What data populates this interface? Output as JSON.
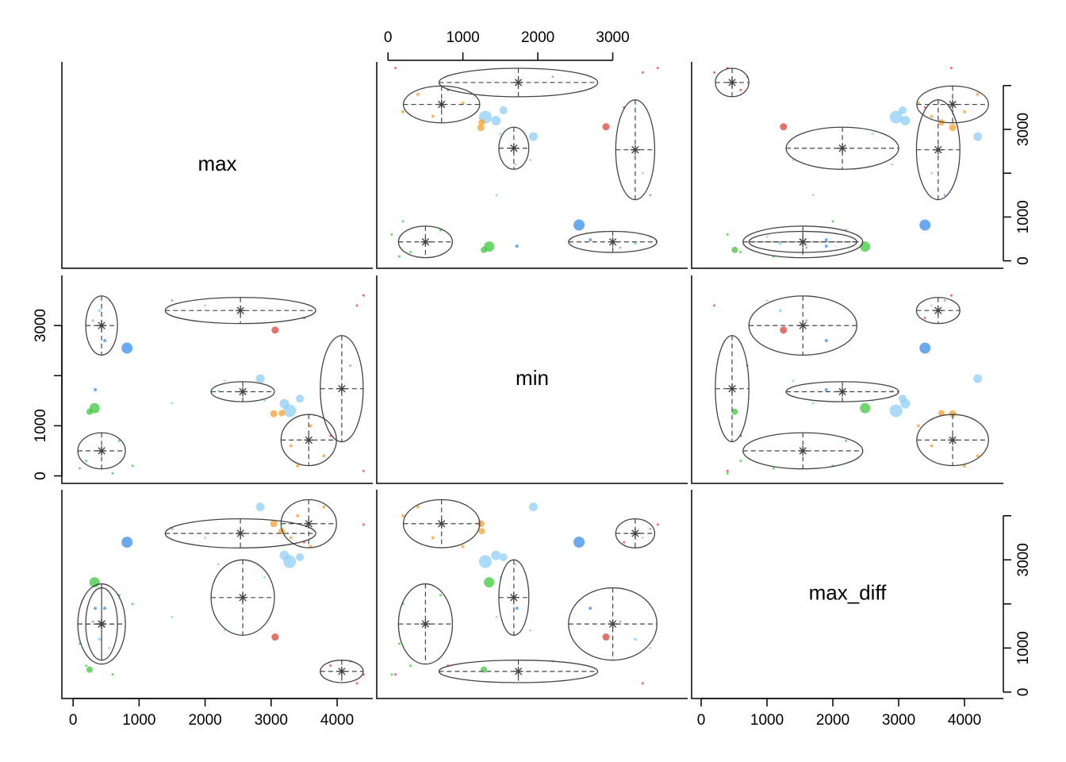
{
  "chart_data": {
    "type": "scatter_matrix",
    "variables": [
      {
        "name": "max",
        "lim": [
          -170,
          4540
        ],
        "ticks": [
          0,
          1000,
          2000,
          3000,
          4000
        ],
        "side_ticks": [
          0,
          1000,
          3000
        ]
      },
      {
        "name": "min",
        "lim": [
          -150,
          4000
        ],
        "ticks": [
          0,
          1000,
          2000,
          3000
        ],
        "side_ticks": [
          0,
          1000,
          3000
        ]
      },
      {
        "name": "max_diff",
        "lim": [
          -145,
          4590
        ],
        "ticks": [
          0,
          1000,
          2000,
          3000,
          4000
        ],
        "side_ticks": [
          0,
          1000,
          3000
        ]
      }
    ],
    "points": [
      {
        "values": [
          817,
          2550,
          3400
        ],
        "color": "#3a8de8",
        "size": 7
      },
      {
        "values": [
          3060,
          2910,
          1250
        ],
        "color": "#e0403a",
        "size": 4.5
      },
      {
        "values": [
          325,
          1350,
          2490
        ],
        "color": "#3fc83f",
        "size": 6.5
      },
      {
        "values": [
          250,
          1280,
          510
        ],
        "color": "#3fc83f",
        "size": 4
      },
      {
        "values": [
          3280,
          1300,
          2960
        ],
        "color": "#8fcff5",
        "size": 8
      },
      {
        "values": [
          2835,
          1940,
          4200
        ],
        "color": "#8fcff5",
        "size": 5.5
      },
      {
        "values": [
          3435,
          1540,
          3060
        ],
        "color": "#8fcff5",
        "size": 5
      },
      {
        "values": [
          3200,
          1440,
          3100
        ],
        "color": "#8fcff5",
        "size": 6
      },
      {
        "values": [
          3040,
          1240,
          3820
        ],
        "color": "#f5a030",
        "size": 4.5
      },
      {
        "values": [
          3160,
          1250,
          3650
        ],
        "color": "#f5a030",
        "size": 4
      },
      {
        "values": [
          336,
          1720,
          1900
        ],
        "color": "#3a8de8",
        "size": 2
      },
      {
        "values": [
          400,
          3300,
          1200
        ],
        "color": "#8fcff5",
        "size": 2
      },
      {
        "values": [
          480,
          2700,
          1900
        ],
        "color": "#3a8de8",
        "size": 2
      },
      {
        "values": [
          300,
          3100,
          1600
        ],
        "color": "#9a8fd8",
        "size": 1.5
      },
      {
        "values": [
          550,
          3500,
          1000
        ],
        "color": "#8fcff5",
        "size": 1.5
      },
      {
        "values": [
          1500,
          3500,
          3700
        ],
        "color": "#9a8fd8",
        "size": 1.5
      },
      {
        "values": [
          3500,
          3150,
          3400
        ],
        "color": "#e0403a",
        "size": 1.5
      },
      {
        "values": [
          2000,
          3400,
          3500
        ],
        "color": "#8fcff5",
        "size": 1.5
      },
      {
        "values": [
          4400,
          3600,
          3800
        ],
        "color": "#e0403a",
        "size": 1.5
      },
      {
        "values": [
          2300,
          1900,
          1400
        ],
        "color": "#8fcff5",
        "size": 1.5
      },
      {
        "values": [
          2900,
          1500,
          2600
        ],
        "color": "#8fcff5",
        "size": 1.5
      },
      {
        "values": [
          2200,
          1700,
          2900
        ],
        "color": "#8fcff5",
        "size": 1.5
      },
      {
        "values": [
          1500,
          1450,
          1700
        ],
        "color": "#8fcff5",
        "size": 1.5
      },
      {
        "values": [
          4300,
          3400,
          200
        ],
        "color": "#e0403a",
        "size": 1.5
      },
      {
        "values": [
          3900,
          800,
          600
        ],
        "color": "#e0403a",
        "size": 1.5
      },
      {
        "values": [
          4200,
          2200,
          700
        ],
        "color": "#9a8fd8",
        "size": 1.5
      },
      {
        "values": [
          4400,
          100,
          400
        ],
        "color": "#e0403a",
        "size": 1.5
      },
      {
        "values": [
          3300,
          600,
          3500
        ],
        "color": "#f5a030",
        "size": 2
      },
      {
        "values": [
          3800,
          400,
          4200
        ],
        "color": "#f5a030",
        "size": 2
      },
      {
        "values": [
          3600,
          1000,
          3300
        ],
        "color": "#f5a030",
        "size": 2
      },
      {
        "values": [
          3400,
          200,
          4000
        ],
        "color": "#f5a030",
        "size": 2
      },
      {
        "values": [
          200,
          300,
          600
        ],
        "color": "#3fc83f",
        "size": 1.5
      },
      {
        "values": [
          700,
          700,
          2200
        ],
        "color": "#3fc83f",
        "size": 1.5
      },
      {
        "values": [
          100,
          150,
          1100
        ],
        "color": "#3fc83f",
        "size": 1.5
      },
      {
        "values": [
          900,
          200,
          2000
        ],
        "color": "#3fc83f",
        "size": 1.5
      },
      {
        "values": [
          600,
          50,
          400
        ],
        "color": "#3fc83f",
        "size": 1.5
      }
    ],
    "clusters": [
      {
        "center": [
          432,
          3000,
          1545
        ],
        "spread": [
          240,
          590,
          820
        ]
      },
      {
        "center": [
          2535,
          3300,
          3600
        ],
        "spread": [
          1140,
          260,
          330
        ]
      },
      {
        "center": [
          2570,
          1680,
          2145
        ],
        "spread": [
          480,
          200,
          855
        ]
      },
      {
        "center": [
          4070,
          1740,
          470
        ],
        "spread": [
          325,
          1060,
          255
        ]
      },
      {
        "center": [
          3570,
          715,
          3820
        ],
        "spread": [
          420,
          510,
          545
        ]
      },
      {
        "center": [
          432,
          500,
          1545
        ],
        "spread": [
          360,
          360,
          910
        ]
      }
    ]
  }
}
